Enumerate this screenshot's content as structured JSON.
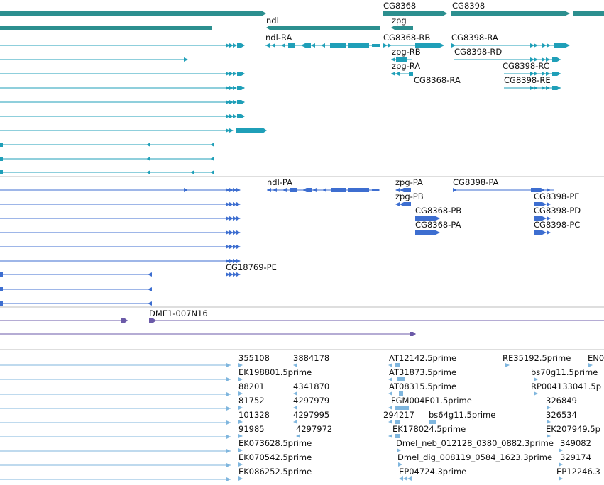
{
  "colors": {
    "gene": "#2c8f8f",
    "rna": "#1f9fb8",
    "protein": "#3d6ed0",
    "clone": "#6b5aa8",
    "est": "#7fb6de",
    "separator": "#bdbdbd",
    "text": "#111111"
  },
  "tracks": {
    "genes": {
      "labels": [
        "ndl",
        "CG8368",
        "zpg",
        "CG8398"
      ]
    },
    "transcripts": {
      "labels": [
        "ndl-RA",
        "CG8368-RB",
        "CG8398-RA",
        "zpg-RB",
        "CG8398-RD",
        "zpg-RA",
        "CG8398-RC",
        "CG8368-RA",
        "CG8398-RE"
      ]
    },
    "proteins": {
      "labels": [
        "ndl-PA",
        "zpg-PA",
        "CG8398-PA",
        "zpg-PB",
        "CG8398-PE",
        "CG8368-PB",
        "CG8398-PD",
        "CG8368-PA",
        "CG8398-PC",
        "CG18769-PE"
      ]
    },
    "clones": {
      "labels": [
        "DME1-007N16"
      ]
    },
    "ests": {
      "labels": [
        "355108",
        "3884178",
        "AT12142.5prime",
        "RE35192.5prime",
        "EN0",
        "EK198801.5prime",
        "AT31873.5prime",
        "bs70g11.5prime",
        "88201",
        "4341870",
        "AT08315.5prime",
        "RP004133041.5p",
        "81752",
        "4297979",
        "FGM004E01.5prime",
        "326849",
        "101328",
        "4297995",
        "294217",
        "bs64g11.5prime",
        "326534",
        "91985",
        "4297972",
        "EK178024.5prime",
        "EK207949.5p",
        "EK073628.5prime",
        "Dmel_neb_012128_0380_0882.3prime",
        "349082",
        "EK070542.5prime",
        "Dmel_dig_008119_0584_1623.3prime",
        "329174",
        "EK086252.5prime",
        "EP04724.3prime",
        "EP12246.3"
      ]
    }
  }
}
